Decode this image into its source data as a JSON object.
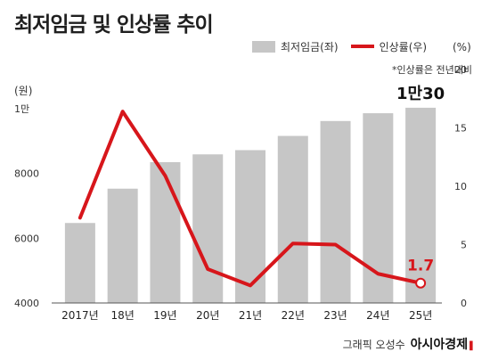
{
  "title": "최저임금 및 인상률 추이",
  "note": "*인상률은 전년대비",
  "credit": {
    "author": "그래픽 오성수",
    "brand": "아시아경제"
  },
  "colors": {
    "bar": "#c6c6c6",
    "line": "#d7161b",
    "axis": "#333333"
  },
  "chart_data": {
    "type": "bar",
    "categories": [
      "2017년",
      "18년",
      "19년",
      "20년",
      "21년",
      "22년",
      "23년",
      "24년",
      "25년"
    ],
    "series": [
      {
        "name": "최저임금(좌)",
        "type": "bar",
        "axis": "left",
        "values": [
          6470,
          7530,
          8350,
          8590,
          8720,
          9160,
          9620,
          9860,
          10030
        ]
      },
      {
        "name": "인상률(우)",
        "type": "line",
        "axis": "right",
        "values": [
          7.3,
          16.4,
          10.9,
          2.9,
          1.5,
          5.1,
          5.0,
          2.5,
          1.7
        ]
      }
    ],
    "left_axis": {
      "unit": "(원)",
      "ylim": [
        4000,
        10000
      ],
      "ticks": [
        4000,
        6000,
        8000,
        10000
      ],
      "tick_labels": [
        "4000",
        "6000",
        "8000",
        "1만"
      ]
    },
    "right_axis": {
      "unit": "(%)",
      "ylim": [
        0,
        20
      ],
      "ticks": [
        0,
        5,
        10,
        15,
        20
      ],
      "tick_labels": [
        "0",
        "5",
        "10",
        "15",
        "20"
      ]
    },
    "annotations": [
      {
        "target": "최저임금(좌)",
        "category": "25년",
        "text": "1만30"
      },
      {
        "target": "인상률(우)",
        "category": "25년",
        "text": "1.7"
      }
    ],
    "grid": false,
    "legend": "top-right"
  }
}
